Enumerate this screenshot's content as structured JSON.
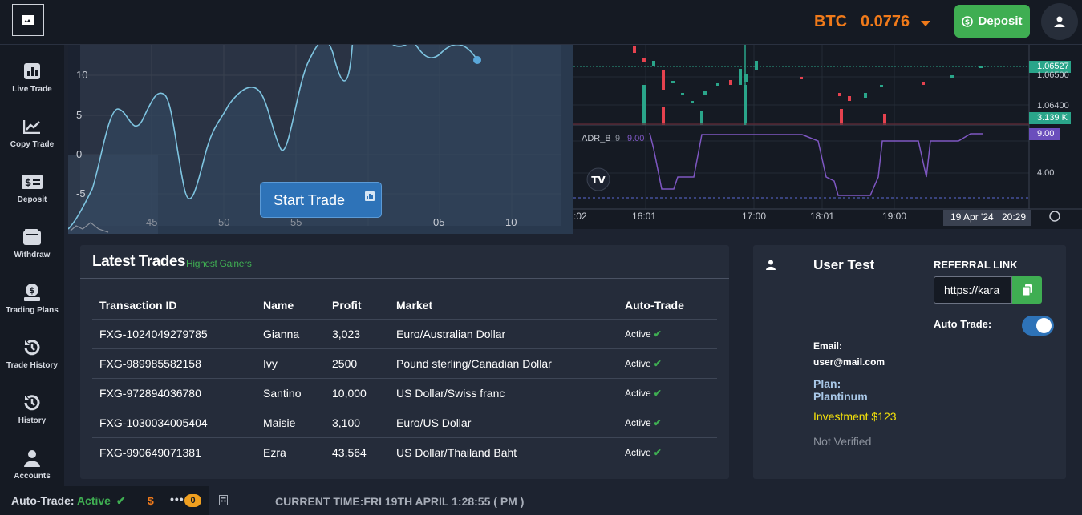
{
  "header": {
    "btc_label": "BTC",
    "btc_value": "0.0776",
    "deposit_label": "Deposit"
  },
  "sidebar": {
    "items": [
      {
        "label": "Live Trade",
        "icon": "bar-chart-icon"
      },
      {
        "label": "Copy Trade",
        "icon": "line-chart-icon"
      },
      {
        "label": "Deposit",
        "icon": "money-icon"
      },
      {
        "label": "Withdraw",
        "icon": "wallet-icon"
      },
      {
        "label": "Trading Plans",
        "icon": "money-bag-icon"
      },
      {
        "label": "Trade History",
        "icon": "history-icon"
      },
      {
        "label": "History",
        "icon": "history-icon"
      },
      {
        "label": "Accounts",
        "icon": "users-icon"
      }
    ]
  },
  "left_chart": {
    "y_ticks": [
      "10",
      "5",
      "0",
      "-5"
    ],
    "x_ticks": [
      "45",
      "50",
      "55",
      "05",
      "10"
    ],
    "start_trade_label": "Start Trade"
  },
  "right_chart": {
    "price_labels": [
      "1.06500",
      "1.06400",
      "4.00"
    ],
    "price_badge": "1.06527",
    "volume_badge": "3.139 K",
    "indicator_badge": "9.00",
    "indicator_name": "ADR_B",
    "indicator_param": "9",
    "indicator_value": "9.00",
    "time_ticks": [
      ":02",
      "16:01",
      "17:00",
      "18:01",
      "19:00"
    ],
    "date_badge": "19 Apr '24",
    "time_badge": "20:29",
    "colors": {
      "up": "#2aa58a",
      "down": "#e5424f",
      "indicator": "#7e57c2"
    }
  },
  "trades": {
    "title": "Latest Trades",
    "subtitle": "Highest Gainers",
    "columns": [
      "Transaction ID",
      "Name",
      "Profit",
      "Market",
      "Auto-Trade"
    ],
    "rows": [
      {
        "id": "FXG-1024049279785",
        "name": "Gianna",
        "profit": "3,023",
        "market": "Euro/Australian Dollar",
        "auto": "Active"
      },
      {
        "id": "FXG-989985582158",
        "name": "Ivy",
        "profit": "2500",
        "market": "Pound sterling/Canadian Dollar",
        "auto": "Active"
      },
      {
        "id": "FXG-972894036780",
        "name": "Santino",
        "profit": "10,000",
        "market": "US Dollar/Swiss franc",
        "auto": "Active"
      },
      {
        "id": "FXG-1030034005404",
        "name": "Maisie",
        "profit": "3,100",
        "market": "Euro/US Dollar",
        "auto": "Active"
      },
      {
        "id": "FXG-990649071381",
        "name": "Ezra",
        "profit": "43,564",
        "market": "US Dollar/Thailand Baht",
        "auto": "Active"
      }
    ]
  },
  "user": {
    "name": "User Test",
    "referral_label": "REFERRAL LINK",
    "referral_value": "https://kara",
    "auto_trade_label": "Auto Trade:",
    "auto_trade_on": true,
    "email_label": "Email:",
    "email_value": "user@mail.com",
    "plan_label": "Plan:",
    "plan_value": "Plantinum",
    "investment": "Investment $123",
    "verification": "Not Verified"
  },
  "footer": {
    "auto_trade_label": "Auto-Trade:",
    "auto_trade_status": "Active",
    "currency_symbol": "$",
    "dots": "•••",
    "badge_count": "0",
    "current_time": "CURRENT TIME:FRI 19TH APRIL 1:28:55 ( PM )"
  }
}
